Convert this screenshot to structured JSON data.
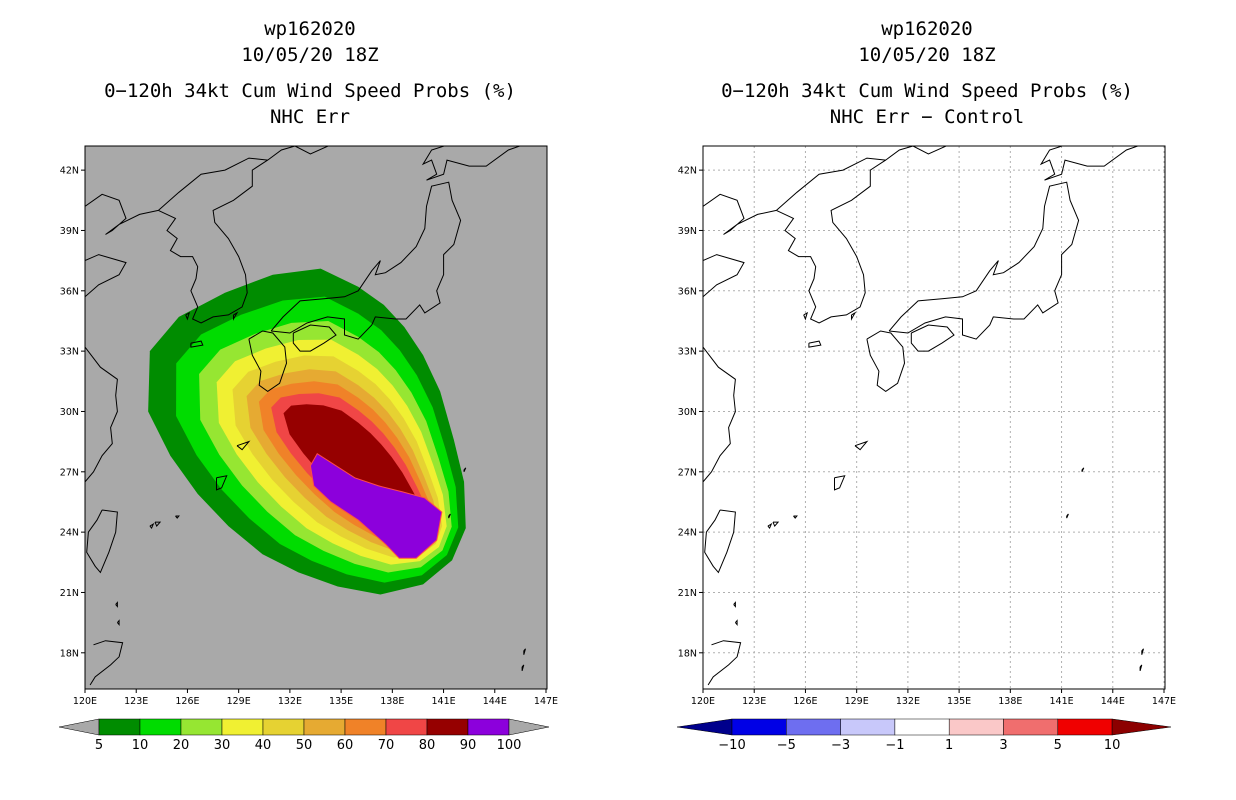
{
  "left_panel": {
    "storm_id": "wp162020",
    "datetime": "10/05/20 18Z",
    "product": "0−120h 34kt Cum Wind Speed Probs (%)",
    "subtitle": "NHC Err",
    "colorbar": {
      "colors": [
        "#008c00",
        "#00dc00",
        "#96e632",
        "#f0f032",
        "#e6d232",
        "#e6aa32",
        "#f08228",
        "#f04646",
        "#960000",
        "#8c00dc"
      ],
      "labels": [
        "5",
        "10",
        "20",
        "30",
        "40",
        "50",
        "60",
        "70",
        "80",
        "90",
        "100"
      ],
      "arrow_color": "#a9a9a9"
    }
  },
  "right_panel": {
    "storm_id": "wp162020",
    "datetime": "10/05/20 18Z",
    "product": "0−120h 34kt Cum Wind Speed Probs (%)",
    "subtitle": "NHC Err − Control",
    "colorbar": {
      "colors": [
        "#0000e6",
        "#6e6ef0",
        "#c8c8fa",
        "#ffffff",
        "#fac8c8",
        "#f06e6e",
        "#f00000"
      ],
      "labels": [
        "−10",
        "−5",
        "−3",
        "−1",
        "1",
        "3",
        "5",
        "10"
      ],
      "left_arrow_color": "#00008c",
      "right_arrow_color": "#8c0000"
    }
  },
  "map": {
    "lon_labels": [
      "120E",
      "123E",
      "126E",
      "129E",
      "132E",
      "135E",
      "138E",
      "141E",
      "144E",
      "147E"
    ],
    "lat_labels": [
      "18N",
      "21N",
      "24N",
      "27N",
      "30N",
      "33N",
      "36N",
      "39N",
      "42N"
    ],
    "land_color_left": "#a9a9a9",
    "land_color_right": "#ffffff"
  },
  "probability_field": {
    "center_lon": 136.8,
    "center_lat": 25.2,
    "levels": [
      5,
      10,
      20,
      30,
      40,
      50,
      60,
      70,
      80,
      90
    ],
    "peak_region": [
      [
        133.6,
        27.9
      ],
      [
        133.2,
        27.3
      ],
      [
        133.4,
        26.3
      ],
      [
        134.4,
        25.5
      ],
      [
        136.0,
        24.6
      ],
      [
        137.6,
        23.4
      ],
      [
        138.4,
        22.7
      ],
      [
        139.4,
        22.7
      ],
      [
        140.6,
        23.6
      ],
      [
        140.9,
        25.0
      ],
      [
        139.9,
        25.7
      ],
      [
        138.6,
        26.0
      ],
      [
        137.2,
        26.3
      ],
      [
        135.8,
        26.7
      ]
    ]
  }
}
